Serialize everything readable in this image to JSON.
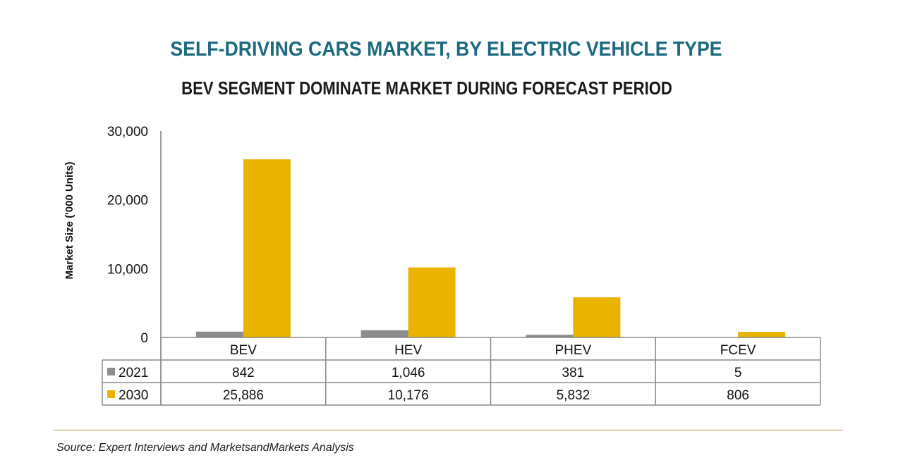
{
  "chart_data": {
    "type": "bar",
    "title": "SELF-DRIVING CARS MARKET, BY ELECTRIC VEHICLE TYPE",
    "subtitle": "BEV SEGMENT DOMINATE MARKET DURING FORECAST PERIOD",
    "xlabel": "",
    "ylabel": "Market Size ('000 Units)",
    "ylim": [
      0,
      30000
    ],
    "yticks": [
      0,
      10000,
      20000,
      30000
    ],
    "ytick_labels": [
      "0",
      "10,000",
      "20,000",
      "30,000"
    ],
    "grid": false,
    "legend": "data-table-left",
    "categories": [
      "BEV",
      "HEV",
      "PHEV",
      "FCEV"
    ],
    "series": [
      {
        "name": "2021",
        "color": "#8c8c8c",
        "values": [
          842,
          1046,
          381,
          5
        ],
        "labels": [
          "842",
          "1,046",
          "381",
          "5"
        ]
      },
      {
        "name": "2030",
        "color": "#e9b300",
        "values": [
          25886,
          10176,
          5832,
          806
        ],
        "labels": [
          "25,886",
          "10,176",
          "5,832",
          "806"
        ]
      }
    ],
    "source": "Source: Expert Interviews and MarketsandMarkets Analysis"
  },
  "colors": {
    "title": "#1b6a80",
    "rule": "#b09a3a"
  }
}
